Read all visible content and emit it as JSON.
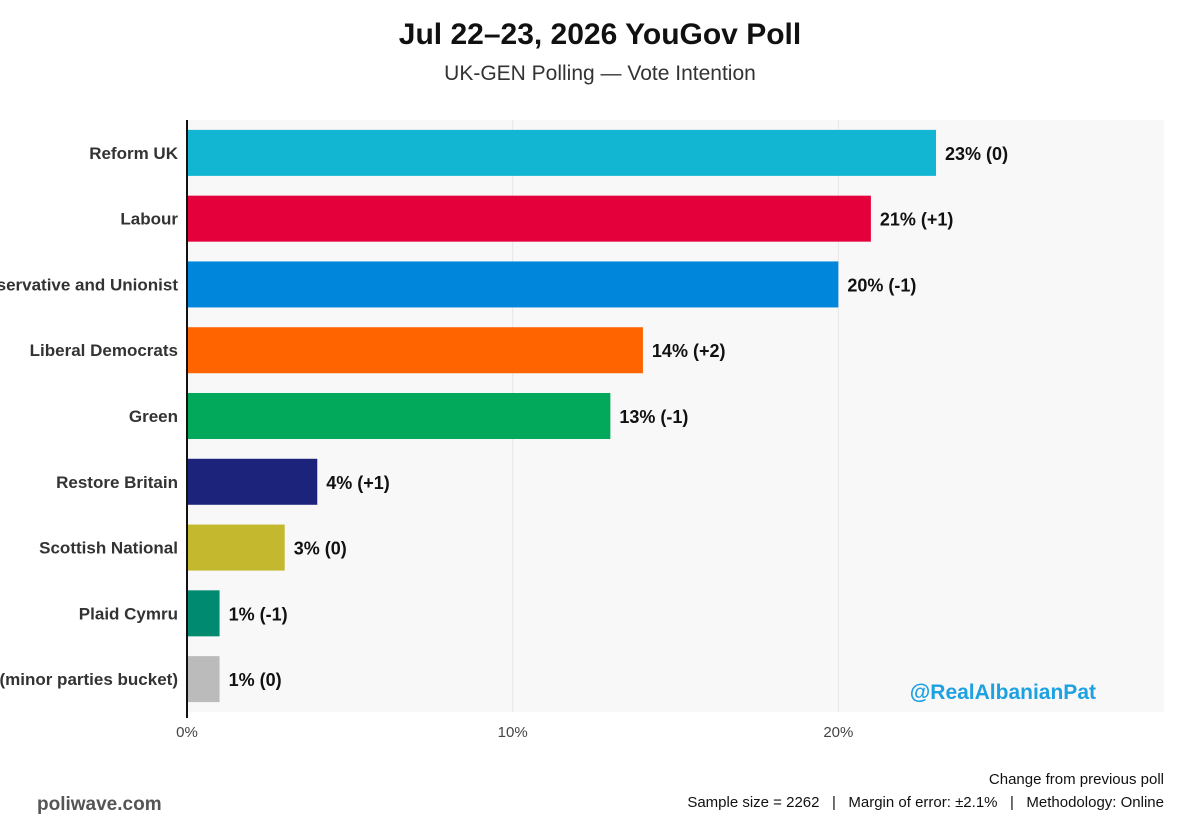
{
  "header": {
    "title": "Jul 22–23, 2026 YouGov Poll",
    "subtitle": "UK-GEN Polling — Vote Intention"
  },
  "chart_data": {
    "type": "bar",
    "orientation": "horizontal",
    "categories": [
      "Reform UK",
      "Labour",
      "Conservative and Unionist",
      "Liberal Democrats",
      "Green",
      "Restore Britain",
      "Scottish National",
      "Plaid Cymru",
      "Others (minor parties bucket)"
    ],
    "values": [
      23,
      21,
      20,
      14,
      13,
      4,
      3,
      1,
      1
    ],
    "value_labels": [
      "23% (0)",
      "21% (+1)",
      "20% (-1)",
      "14% (+2)",
      "13% (-1)",
      "4% (+1)",
      "3% (0)",
      "1% (-1)",
      "1% (0)"
    ],
    "colors": [
      "#12b6d3",
      "#e4003b",
      "#0087dc",
      "#ff6400",
      "#02a95b",
      "#1b237a",
      "#c4b92e",
      "#008a6f",
      "#bbbbbb"
    ],
    "xlim": [
      0,
      30
    ],
    "xticks": [
      0,
      10,
      20
    ],
    "xtick_labels": [
      "0%",
      "10%",
      "20%"
    ],
    "grid": true,
    "watermark": "@RealAlbanianPat"
  },
  "footer": {
    "site": "poliwave.com",
    "note_line1": "Change from previous poll",
    "note_line2": "Sample size = 2262   |   Margin of error: ±2.1%   |   Methodology: Online"
  }
}
